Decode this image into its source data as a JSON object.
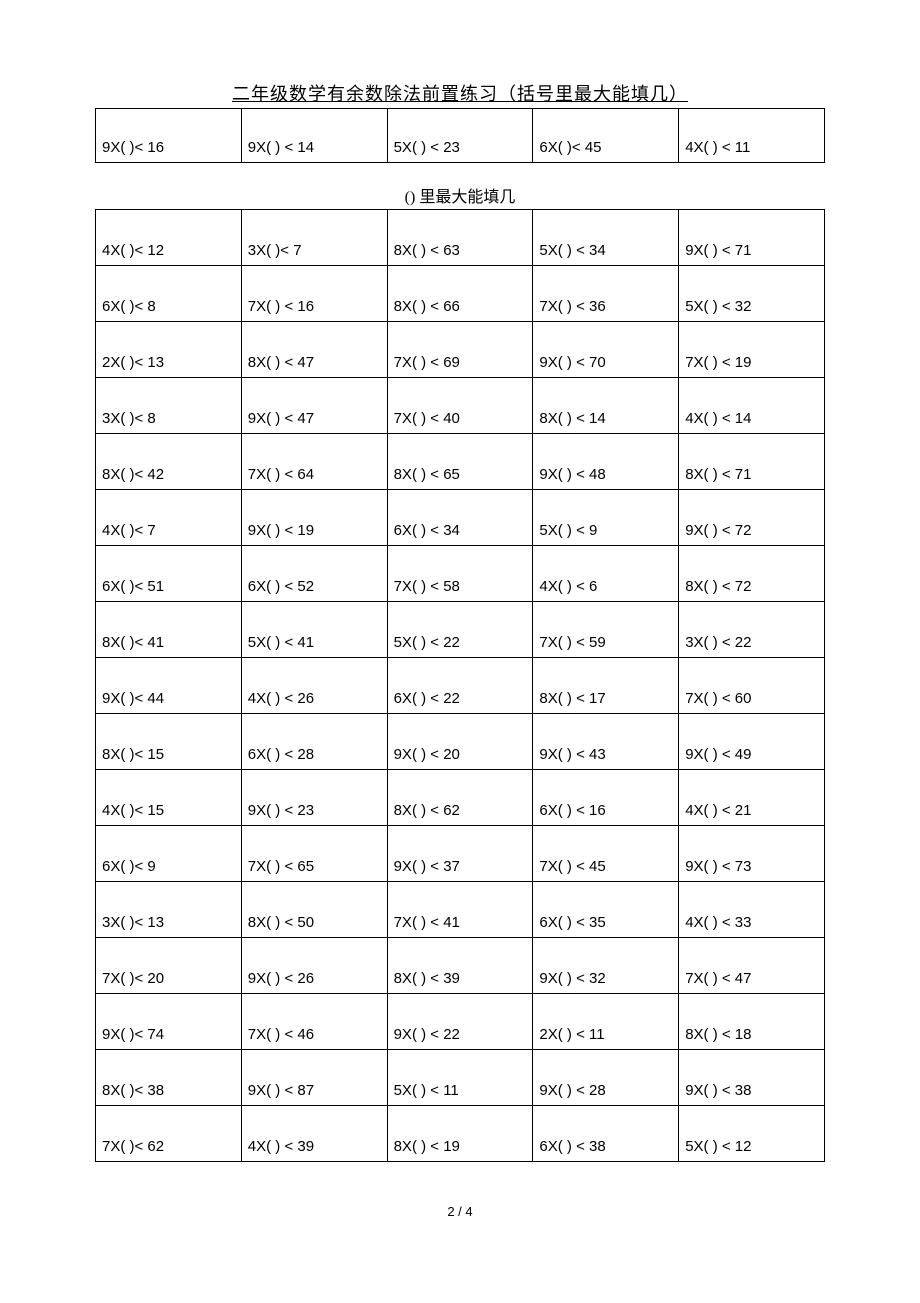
{
  "title": "二年级数学有余数除法前置练习（括号里最大能填几）",
  "subtitle": "() 里最大能填几",
  "footer": "2 / 4",
  "table1": {
    "rows": [
      [
        "9X( )< 16",
        "9X( ) < 14",
        "5X( ) < 23",
        "6X( )< 45",
        "4X( ) < 11"
      ]
    ]
  },
  "table2": {
    "rows": [
      [
        "4X( )< 12",
        "3X( )< 7",
        "8X( ) < 63",
        "5X( ) < 34",
        "9X( ) < 71"
      ],
      [
        "6X( )< 8",
        "7X( ) < 16",
        "8X( ) < 66",
        "7X(      ) < 36",
        "5X( ) < 32"
      ],
      [
        "2X( )< 13",
        "8X( ) < 47",
        "7X( ) < 69",
        "9X(      ) < 70",
        "7X( ) < 19"
      ],
      [
        "3X( )< 8",
        "9X( ) < 47",
        "7X( ) < 40",
        "8X( ) < 14",
        "4X( ) < 14"
      ],
      [
        "8X( )< 42",
        "7X( ) < 64",
        "8X( ) < 65",
        "9X( ) < 48",
        "8X( ) < 71"
      ],
      [
        "4X( )< 7",
        "9X( ) < 19",
        "6X( ) < 34",
        "5X( ) < 9",
        "9X( ) < 72"
      ],
      [
        "6X( )< 51",
        "6X( ) < 52",
        "7X(      ) < 58",
        "4X( ) < 6",
        "8X( ) < 72"
      ],
      [
        "8X( )< 41",
        "5X( ) < 41",
        "5X( ) < 22",
        "7X( ) < 59",
        "3X( ) < 22"
      ],
      [
        "9X( )< 44",
        "4X( ) < 26",
        "6X( ) < 22",
        "8X( ) < 17",
        "7X(      ) < 60"
      ],
      [
        "8X( )< 15",
        "6X( ) < 28",
        "9X( ) < 20",
        "9X( ) < 43",
        "9X( ) < 49"
      ],
      [
        "4X( )< 15",
        "9X( ) < 23",
        "8X(      ) < 62",
        "6X( ) < 16",
        "4X( ) < 21"
      ],
      [
        "6X( )< 9",
        "7X( ) < 65",
        "9X( ) < 37",
        "7X( ) < 45",
        "9X( ) < 73"
      ],
      [
        "3X( )< 13",
        "8X( ) < 50",
        "7X( ) < 41",
        "6X( ) < 35",
        "4X( ) < 33"
      ],
      [
        "7X( )< 20",
        "9X( ) < 26",
        "8X( ) < 39",
        "9X( ) < 32",
        "7X( ) < 47"
      ],
      [
        "9X( )< 74",
        "7X( ) < 46",
        "9X( ) < 22",
        "2X( ) < 11",
        "8X( ) < 18"
      ],
      [
        "8X( )< 38",
        "9X( ) < 87",
        "5X( ) < 11",
        "9X( ) < 28",
        "9X( ) < 38"
      ],
      [
        "7X( )< 62",
        "4X( ) < 39",
        "8X( ) < 19",
        "6X( ) < 38",
        "5X( ) < 12"
      ]
    ]
  }
}
